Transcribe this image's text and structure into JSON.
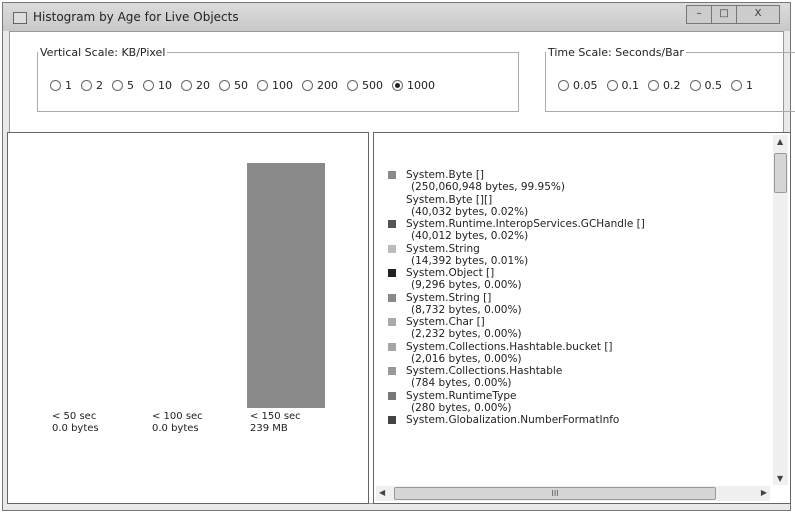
{
  "window": {
    "title": "Histogram by Age for Live Objects",
    "minimize": "–",
    "maximize": "□",
    "close": "X"
  },
  "vertical_scale": {
    "label": "Vertical Scale: KB/Pixel",
    "options": [
      "1",
      "2",
      "5",
      "10",
      "20",
      "50",
      "100",
      "200",
      "500",
      "1000"
    ],
    "selected": "1000"
  },
  "time_scale": {
    "label": "Time Scale: Seconds/Bar",
    "options": [
      "0.05",
      "0.1",
      "0.2",
      "0.5",
      "1"
    ],
    "selected": null
  },
  "histogram": {
    "bars": [
      {
        "label": "< 50 sec",
        "value": "0.0 bytes",
        "fraction": 0
      },
      {
        "label": "< 100 sec",
        "value": "0.0 bytes",
        "fraction": 0
      },
      {
        "label": "< 150 sec",
        "value": "239 MB",
        "fraction": 1
      }
    ],
    "bar_color": "#8a8a8a"
  },
  "legend": [
    {
      "name": "System.Byte []",
      "detail": "(250,060,948 bytes, 99.95%)",
      "color": "#8a8a8a"
    },
    {
      "name": "System.Byte [][]",
      "detail": "(40,032 bytes, 0.02%)",
      "color": "#ffffff"
    },
    {
      "name": "System.Runtime.InteropServices.GCHandle []",
      "detail": "(40,012 bytes, 0.02%)",
      "color": "#555555"
    },
    {
      "name": "System.String",
      "detail": "(14,392 bytes, 0.01%)",
      "color": "#bbbbbb"
    },
    {
      "name": "System.Object []",
      "detail": "(9,296 bytes, 0.00%)",
      "color": "#222222"
    },
    {
      "name": "System.String []",
      "detail": "(8,732 bytes, 0.00%)",
      "color": "#888888"
    },
    {
      "name": "System.Char []",
      "detail": "(2,232 bytes, 0.00%)",
      "color": "#aaaaaa"
    },
    {
      "name": "System.Collections.Hashtable.bucket []",
      "detail": "(2,016 bytes, 0.00%)",
      "color": "#a5a5a5"
    },
    {
      "name": "System.Collections.Hashtable",
      "detail": "(784 bytes, 0.00%)",
      "color": "#999999"
    },
    {
      "name": "System.RuntimeType",
      "detail": "(280 bytes, 0.00%)",
      "color": "#777777"
    },
    {
      "name": "System.Globalization.NumberFormatInfo",
      "detail": "",
      "color": "#444444"
    }
  ],
  "scrollbar": {
    "h_grip": "III"
  }
}
